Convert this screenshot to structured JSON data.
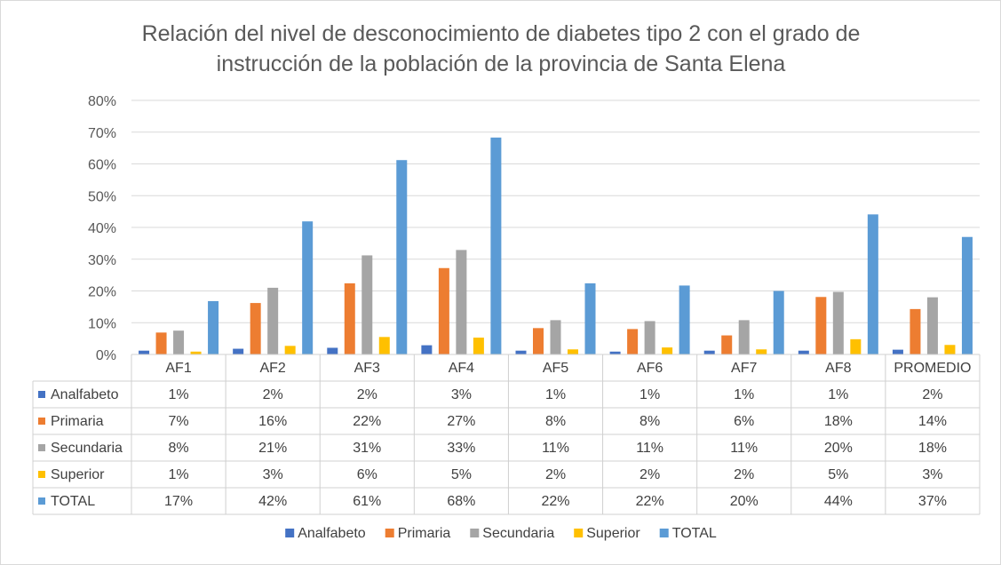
{
  "chart_data": {
    "type": "bar",
    "title_line1": "Relación del nivel de desconocimiento de diabetes tipo 2 con el grado de",
    "title_line2": "instrucción de la población de la provincia de Santa Elena",
    "xlabel": "",
    "ylabel": "",
    "ylim": [
      0,
      0.8
    ],
    "yticks": [
      "0%",
      "10%",
      "20%",
      "30%",
      "40%",
      "50%",
      "60%",
      "70%",
      "80%"
    ],
    "grid": true,
    "legend_position": "bottom",
    "categories": [
      "AF1",
      "AF2",
      "AF3",
      "AF4",
      "AF5",
      "AF6",
      "AF7",
      "AF8",
      "PROMEDIO"
    ],
    "series": [
      {
        "name": "Analfabeto",
        "color": "#4472c4",
        "values": [
          0.012,
          0.018,
          0.021,
          0.029,
          0.012,
          0.009,
          0.012,
          0.012,
          0.015
        ],
        "labels": [
          "1%",
          "2%",
          "2%",
          "3%",
          "1%",
          "1%",
          "1%",
          "1%",
          "2%"
        ]
      },
      {
        "name": "Primaria",
        "color": "#ed7d31",
        "values": [
          0.069,
          0.162,
          0.224,
          0.272,
          0.083,
          0.08,
          0.06,
          0.181,
          0.143
        ],
        "labels": [
          "7%",
          "16%",
          "22%",
          "27%",
          "8%",
          "8%",
          "6%",
          "18%",
          "14%"
        ]
      },
      {
        "name": "Secundaria",
        "color": "#a5a5a5",
        "values": [
          0.075,
          0.21,
          0.312,
          0.329,
          0.108,
          0.105,
          0.108,
          0.197,
          0.18
        ],
        "labels": [
          "8%",
          "21%",
          "31%",
          "33%",
          "11%",
          "11%",
          "11%",
          "20%",
          "18%"
        ]
      },
      {
        "name": "Superior",
        "color": "#ffc000",
        "values": [
          0.009,
          0.027,
          0.055,
          0.053,
          0.016,
          0.022,
          0.016,
          0.048,
          0.03
        ],
        "labels": [
          "1%",
          "3%",
          "6%",
          "5%",
          "2%",
          "2%",
          "2%",
          "5%",
          "3%"
        ]
      },
      {
        "name": "TOTAL",
        "color": "#5b9bd5",
        "values": [
          0.168,
          0.419,
          0.612,
          0.683,
          0.224,
          0.217,
          0.2,
          0.441,
          0.37
        ],
        "labels": [
          "17%",
          "42%",
          "61%",
          "68%",
          "22%",
          "22%",
          "20%",
          "44%",
          "37%"
        ]
      }
    ]
  }
}
